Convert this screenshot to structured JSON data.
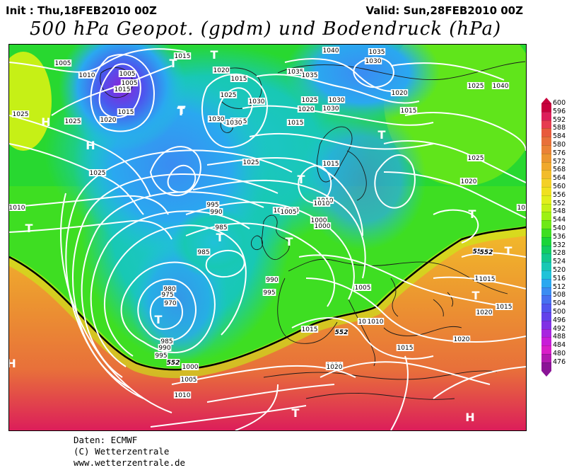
{
  "header": {
    "init": "Init : Thu,18FEB2010 00Z",
    "valid": "Valid: Sun,28FEB2010 00Z",
    "title": "500 hPa Geopot. (gpdm) und Bodendruck (hPa)"
  },
  "legend": {
    "values": [
      "600",
      "596",
      "592",
      "588",
      "584",
      "580",
      "576",
      "572",
      "568",
      "564",
      "560",
      "556",
      "552",
      "548",
      "544",
      "540",
      "536",
      "532",
      "528",
      "524",
      "520",
      "516",
      "512",
      "508",
      "504",
      "500",
      "496",
      "492",
      "488",
      "484",
      "480",
      "476"
    ],
    "colors": [
      "#c8003c",
      "#dc1e5a",
      "#e63c50",
      "#e85a3c",
      "#e8703a",
      "#ea8236",
      "#ec9630",
      "#f0a82c",
      "#f2bc2a",
      "#f4d028",
      "#f0e020",
      "#e2ee1c",
      "#c6f016",
      "#9ef012",
      "#6ee816",
      "#3ede22",
      "#1ad43a",
      "#12cc62",
      "#12c88c",
      "#18c8b4",
      "#20c2d8",
      "#2aa8f0",
      "#3a8cf2",
      "#4670f0",
      "#5056ee",
      "#6242ea",
      "#8030e4",
      "#a824e0",
      "#c81cd8",
      "#d81ec8",
      "#b01ab0",
      "#8a1496"
    ]
  },
  "contour_labels": [
    "1005",
    "1010",
    "1005",
    "1005",
    "1015",
    "1015",
    "1020",
    "1015",
    "1030",
    "1040",
    "1035",
    "1030",
    "1035",
    "1040",
    "1020",
    "1030",
    "1025",
    "1025",
    "1025",
    "1025",
    "1025",
    "1020",
    "1015",
    "1030",
    "1030",
    "1025",
    "1015",
    "1010",
    "1005",
    "1000",
    "1035",
    "1030",
    "1025",
    "1025",
    "1020",
    "1015",
    "1015",
    "1010",
    "1010",
    "995",
    "990",
    "985",
    "985",
    "980",
    "975",
    "970",
    "995",
    "990",
    "1000",
    "1005",
    "1005",
    "1010",
    "1020",
    "1015",
    "1015",
    "1015",
    "1020",
    "1020",
    "985",
    "990",
    "995",
    "1000",
    "1005",
    "1010",
    "1015",
    "1020",
    "1010",
    "1015",
    "1015",
    "1020",
    "1020",
    "1015",
    "1010",
    "552",
    "552",
    "552",
    "552",
    "1025",
    "1010"
  ],
  "centers": [
    "T",
    "T",
    "T",
    "T",
    "H",
    "H",
    "T",
    "T",
    "T",
    "T",
    "T",
    "T",
    "T",
    "T",
    "T",
    "H",
    "H",
    "T"
  ],
  "credits": [
    "Daten: ECMWF",
    "(C) Wetterzentrale",
    "www.wetterzentrale.de"
  ]
}
